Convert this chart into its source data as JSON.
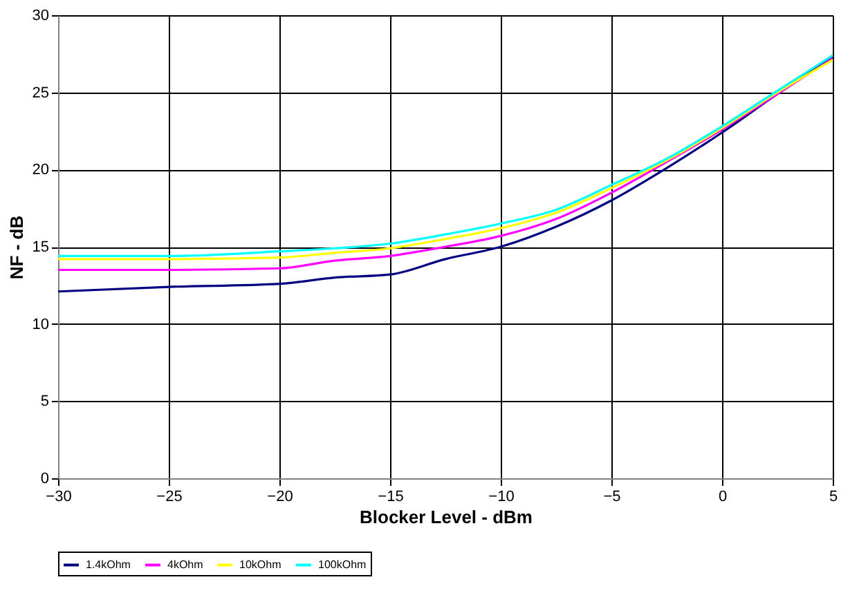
{
  "chart_data": {
    "type": "line",
    "xlabel": "Blocker Level - dBm",
    "ylabel": "NF - dB",
    "x": [
      -30,
      -25,
      -20,
      -17.5,
      -15,
      -12.5,
      -10,
      -7.5,
      -5,
      -2.5,
      0,
      2.5,
      5
    ],
    "series": [
      {
        "name": "1.4kOhm",
        "color": "#000080",
        "values": [
          12.1,
          12.4,
          12.6,
          13.0,
          13.2,
          14.2,
          15.0,
          16.3,
          18.0,
          20.1,
          22.4,
          24.9,
          27.3
        ]
      },
      {
        "name": "4kOhm",
        "color": "#ff00ff",
        "values": [
          13.5,
          13.5,
          13.6,
          14.1,
          14.4,
          15.0,
          15.7,
          16.8,
          18.5,
          20.5,
          22.6,
          24.9,
          27.2
        ]
      },
      {
        "name": "10kOhm",
        "color": "#ffff00",
        "values": [
          14.2,
          14.2,
          14.3,
          14.6,
          14.9,
          15.5,
          16.2,
          17.2,
          18.8,
          20.6,
          22.7,
          25.0,
          27.1
        ]
      },
      {
        "name": "100kOhm",
        "color": "#00ffff",
        "values": [
          14.4,
          14.4,
          14.7,
          14.9,
          15.2,
          15.8,
          16.5,
          17.4,
          19.0,
          20.7,
          22.8,
          25.1,
          27.4
        ]
      }
    ],
    "xlim": [
      -30,
      5
    ],
    "xticks": [
      -30,
      -25,
      -20,
      -15,
      -10,
      -5,
      0,
      5
    ],
    "ylim": [
      0,
      30
    ],
    "yticks": [
      0,
      5,
      10,
      15,
      20,
      25,
      30
    ],
    "grid": true,
    "legend": "bottom",
    "marker": "none",
    "line_style": "solid"
  }
}
